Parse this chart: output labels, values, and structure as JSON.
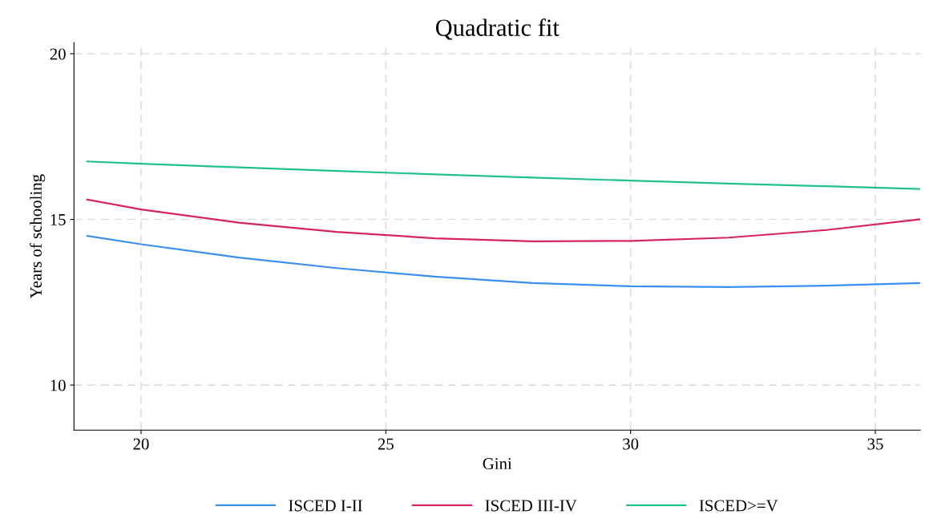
{
  "chart_data": {
    "type": "line",
    "title": "Quadratic fit",
    "xlabel": "Gini",
    "ylabel": "Years of schooling",
    "xlim": [
      18.63,
      35.92
    ],
    "ylim": [
      8.64,
      20.34
    ],
    "xticks": [
      20,
      25,
      30,
      35
    ],
    "yticks": [
      10,
      15,
      20
    ],
    "grid": true,
    "legend": "bottom",
    "marker": "none",
    "line_style": "solid",
    "series": [
      {
        "name": "ISCED I-II",
        "color": "#3a8ef0",
        "x": [
          18.9,
          20,
          22,
          24,
          26,
          28,
          30,
          32,
          34,
          35.9
        ],
        "values": [
          14.5,
          14.25,
          13.85,
          13.53,
          13.27,
          13.08,
          12.98,
          12.96,
          13.0,
          13.08
        ]
      },
      {
        "name": "ISCED III-IV",
        "color": "#d6245c",
        "x": [
          18.9,
          20,
          22,
          24,
          26,
          28,
          30,
          32,
          34,
          35.9
        ],
        "values": [
          15.6,
          15.3,
          14.9,
          14.62,
          14.43,
          14.34,
          14.35,
          14.45,
          14.68,
          15.0
        ]
      },
      {
        "name": "ISCED>=V",
        "color": "#22c08f",
        "x": [
          18.9,
          20,
          22,
          24,
          26,
          28,
          30,
          32,
          34,
          35.9
        ],
        "values": [
          16.75,
          16.68,
          16.57,
          16.46,
          16.36,
          16.26,
          16.17,
          16.08,
          16.0,
          15.92
        ]
      }
    ]
  }
}
